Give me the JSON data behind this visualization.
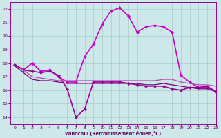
{
  "xlabel": "Windchill (Refroidissement éolien,°C)",
  "background_color": "#cce8e8",
  "grid_color": "#aacccc",
  "xlim": [
    -0.5,
    23
  ],
  "ylim": [
    13.5,
    22.5
  ],
  "yticks": [
    14,
    15,
    16,
    17,
    18,
    19,
    20,
    21,
    22
  ],
  "xticks": [
    0,
    1,
    2,
    3,
    4,
    5,
    6,
    7,
    8,
    9,
    10,
    11,
    12,
    13,
    14,
    15,
    16,
    17,
    18,
    19,
    20,
    21,
    22,
    23
  ],
  "series": [
    {
      "x": [
        0,
        1,
        2,
        3,
        4,
        5,
        6,
        7,
        8,
        9,
        10,
        11,
        12,
        13,
        14,
        15,
        16,
        17,
        18,
        19,
        20,
        21,
        22,
        23
      ],
      "y": [
        17.9,
        17.5,
        18.0,
        17.4,
        17.5,
        17.0,
        16.6,
        16.6,
        18.5,
        19.4,
        20.9,
        21.85,
        22.1,
        21.5,
        20.3,
        20.7,
        20.8,
        20.7,
        20.3,
        17.1,
        16.6,
        16.2,
        16.2,
        15.9
      ],
      "color": "#cc00cc",
      "linewidth": 1.2,
      "marker": "D",
      "markersize": 2.5
    },
    {
      "x": [
        0,
        1,
        2,
        3,
        4,
        5,
        6,
        7,
        8,
        9,
        10,
        11,
        12,
        13,
        14,
        15,
        16,
        17,
        18,
        19,
        20,
        21,
        22,
        23
      ],
      "y": [
        17.9,
        17.5,
        17.4,
        17.3,
        17.4,
        17.1,
        16.1,
        14.0,
        14.6,
        16.6,
        16.6,
        16.6,
        16.6,
        16.5,
        16.4,
        16.3,
        16.3,
        16.3,
        16.1,
        16.0,
        16.2,
        16.2,
        16.3,
        15.9
      ],
      "color": "#990099",
      "linewidth": 1.2,
      "marker": "D",
      "markersize": 2.5
    },
    {
      "x": [
        0,
        1,
        2,
        3,
        4,
        5,
        6,
        7,
        8,
        9,
        10,
        11,
        12,
        13,
        14,
        15,
        16,
        17,
        18,
        19,
        20,
        21,
        22,
        23
      ],
      "y": [
        17.8,
        17.5,
        17.0,
        16.9,
        16.8,
        16.7,
        16.7,
        16.7,
        16.7,
        16.7,
        16.7,
        16.7,
        16.7,
        16.7,
        16.7,
        16.7,
        16.7,
        16.8,
        16.8,
        16.6,
        16.5,
        16.4,
        16.4,
        16.3
      ],
      "color": "#bb44bb",
      "linewidth": 0.9,
      "marker": null,
      "markersize": 0
    },
    {
      "x": [
        0,
        1,
        2,
        3,
        4,
        5,
        6,
        7,
        8,
        9,
        10,
        11,
        12,
        13,
        14,
        15,
        16,
        17,
        18,
        19,
        20,
        21,
        22,
        23
      ],
      "y": [
        17.8,
        17.3,
        16.8,
        16.7,
        16.7,
        16.6,
        16.5,
        16.5,
        16.5,
        16.5,
        16.5,
        16.5,
        16.5,
        16.5,
        16.5,
        16.4,
        16.4,
        16.5,
        16.4,
        16.3,
        16.2,
        16.1,
        16.1,
        15.9
      ],
      "color": "#770077",
      "linewidth": 0.9,
      "marker": null,
      "markersize": 0
    }
  ]
}
